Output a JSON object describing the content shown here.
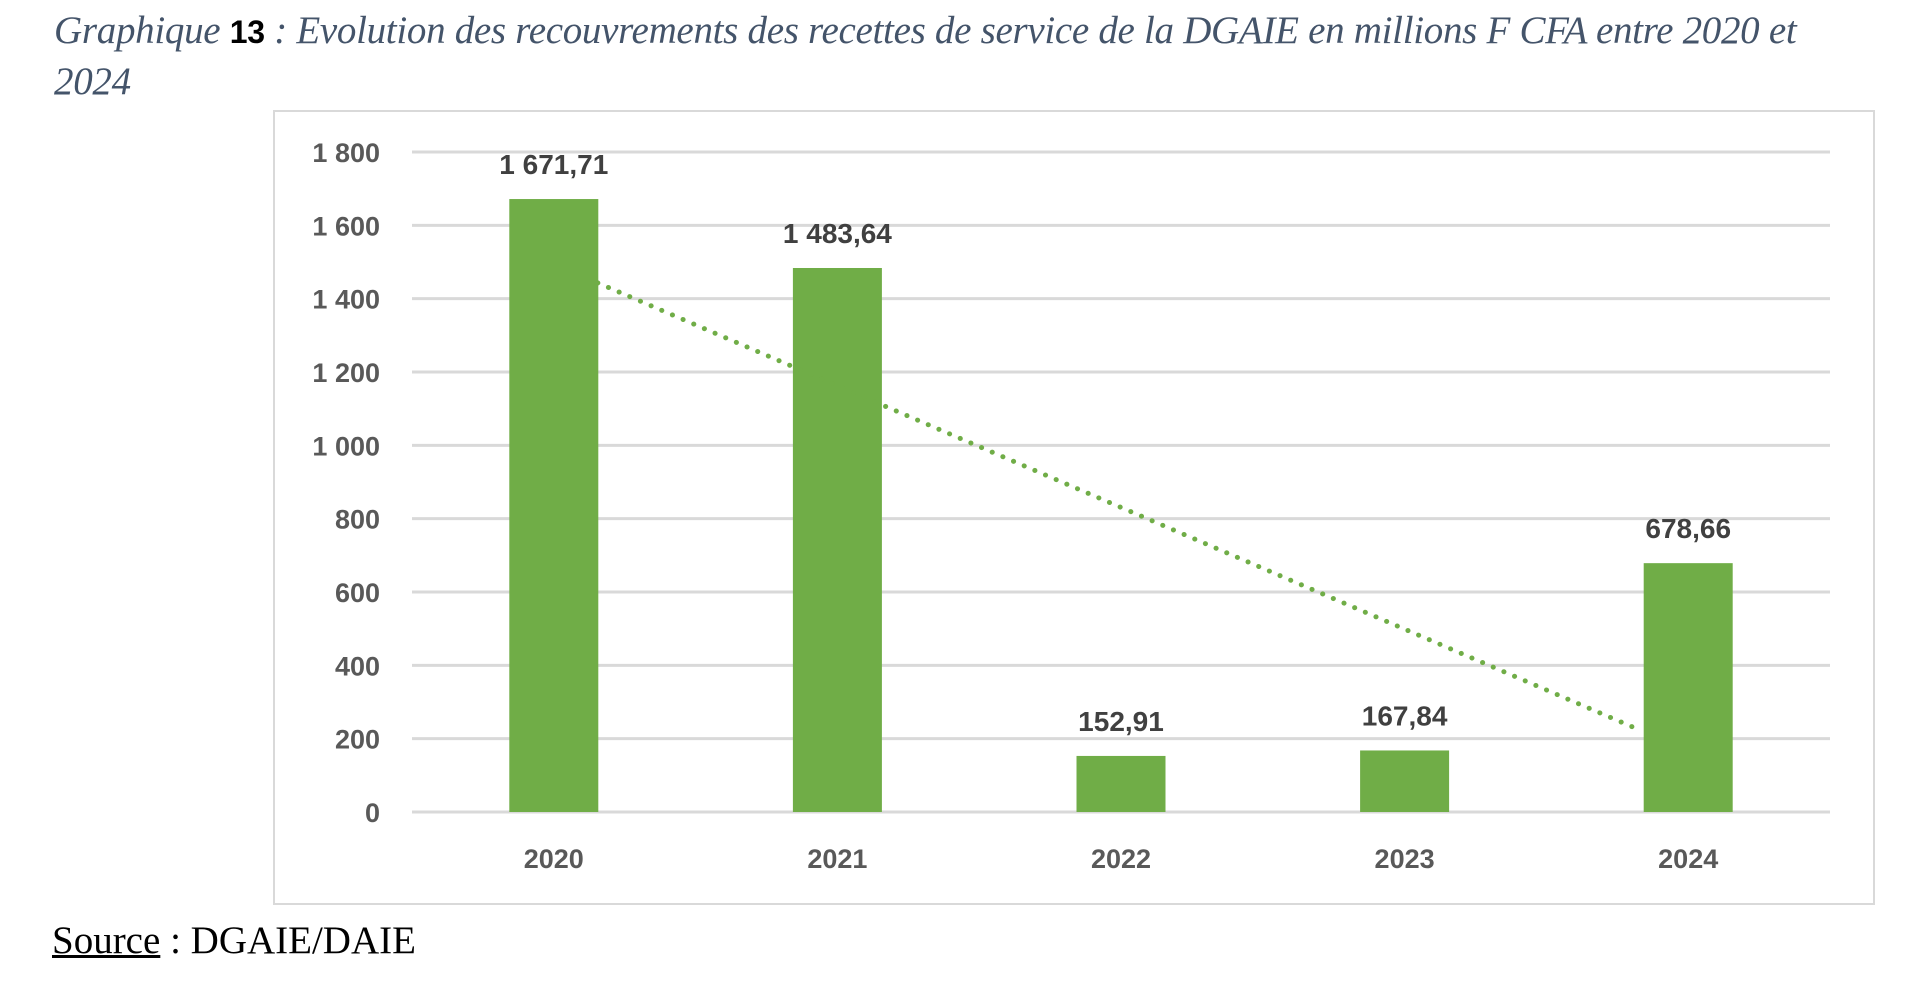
{
  "title": {
    "prefix": "Graphique ",
    "number": "13",
    "text": " : Evolution des recouvrements des recettes de service de la DGAIE en millions F CFA entre 2020 et 2024"
  },
  "source": {
    "label": "Source",
    "separator": " : ",
    "value": "DGAIE/DAIE"
  },
  "colors": {
    "bar": "#70ad47",
    "trendline": "#70ad47",
    "grid": "#d9d9d9",
    "axis_text": "#595959",
    "data_label": "#404040",
    "title": "#44546a"
  },
  "chart_data": {
    "type": "bar",
    "title": "Evolution des recouvrements des recettes de service de la DGAIE en millions F CFA entre 2020 et 2024",
    "xlabel": "",
    "ylabel": "",
    "categories": [
      "2020",
      "2021",
      "2022",
      "2023",
      "2024"
    ],
    "values": [
      1671.71,
      1483.64,
      152.91,
      167.84,
      678.66
    ],
    "data_labels": [
      "1 671,71",
      "1 483,64",
      "152,91",
      "167,84",
      "678,66"
    ],
    "ylim": [
      0,
      1800
    ],
    "yticks": [
      0,
      200,
      400,
      600,
      800,
      1000,
      1200,
      1400,
      1600,
      1800
    ],
    "ytick_labels": [
      "0",
      "200",
      "400",
      "600",
      "800",
      "1 000",
      "1 200",
      "1 400",
      "1 600",
      "1 800"
    ],
    "grid": true,
    "legend": "none",
    "trendline": {
      "type": "linear",
      "style": "dotted",
      "start": {
        "x_index": 1.155,
        "value": 1443
      },
      "end": {
        "x_index": 4.837,
        "value": 221
      }
    }
  }
}
